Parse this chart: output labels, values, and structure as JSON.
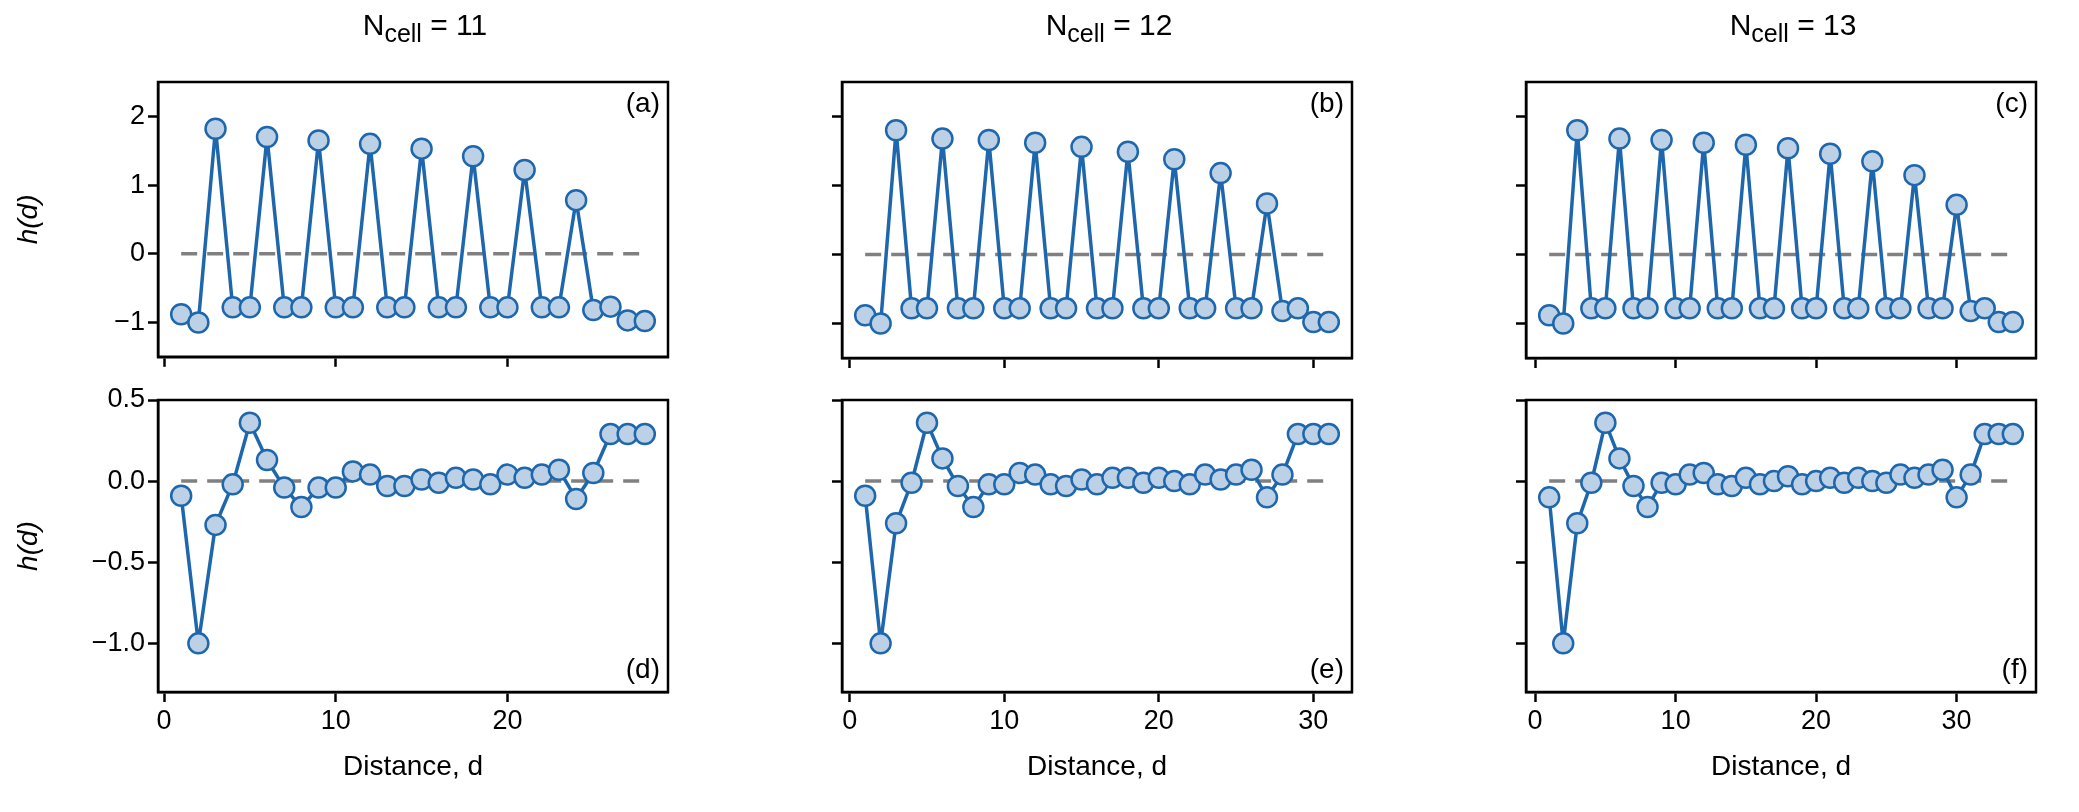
{
  "chart_data": [
    {
      "type": "line",
      "title": "N$_{cell}$ = 11",
      "ylabel": "h(d)",
      "annotations": [
        "(a)"
      ],
      "x": [
        1,
        2,
        3,
        4,
        5,
        6,
        7,
        8,
        9,
        10,
        11,
        12,
        13,
        14,
        15,
        16,
        17,
        18,
        19,
        20,
        21,
        22,
        23,
        24,
        25,
        26,
        27,
        28
      ],
      "xlim": [
        -0.35,
        29.35
      ],
      "xticks": [
        0,
        10,
        20
      ],
      "ylim": [
        -1.5,
        2.5
      ],
      "yticks": [
        -1,
        0,
        1,
        2
      ],
      "tick_labels": "y",
      "marker": "circle",
      "line_style": "solid",
      "series": [
        {
          "color": "#1f67ad",
          "values": [
            -0.88,
            -1.0,
            1.82,
            -0.78,
            -0.78,
            1.7,
            -0.78,
            -0.78,
            1.65,
            -0.78,
            -0.78,
            1.6,
            -0.78,
            -0.78,
            1.53,
            -0.78,
            -0.78,
            1.42,
            -0.78,
            -0.78,
            1.22,
            -0.78,
            -0.78,
            0.78,
            -0.82,
            -0.77,
            -0.97,
            -0.98
          ]
        }
      ],
      "ref_lines": [
        {
          "axis": "y",
          "value": 0,
          "color": "#808080",
          "line_style": "dashed"
        }
      ]
    },
    {
      "type": "line",
      "title": "N$_{cell}$ = 12",
      "annotations": [
        "(b)"
      ],
      "x": [
        1,
        2,
        3,
        4,
        5,
        6,
        7,
        8,
        9,
        10,
        11,
        12,
        13,
        14,
        15,
        16,
        17,
        18,
        19,
        20,
        21,
        22,
        23,
        24,
        25,
        26,
        27,
        28,
        29,
        30,
        31
      ],
      "xlim": [
        -0.5,
        32.5
      ],
      "xticks": [
        0,
        10,
        20,
        30
      ],
      "ylim": [
        -1.5,
        2.5
      ],
      "yticks": [
        -1,
        0,
        1,
        2
      ],
      "tick_labels": false,
      "marker": "circle",
      "line_style": "solid",
      "series": [
        {
          "color": "#1f67ad",
          "values": [
            -0.88,
            -1.0,
            1.8,
            -0.78,
            -0.78,
            1.68,
            -0.78,
            -0.78,
            1.66,
            -0.78,
            -0.78,
            1.62,
            -0.78,
            -0.78,
            1.56,
            -0.78,
            -0.78,
            1.49,
            -0.78,
            -0.78,
            1.38,
            -0.78,
            -0.78,
            1.18,
            -0.78,
            -0.78,
            0.74,
            -0.82,
            -0.78,
            -0.98,
            -0.98
          ]
        }
      ],
      "ref_lines": [
        {
          "axis": "y",
          "value": 0,
          "color": "#808080",
          "line_style": "dashed"
        }
      ]
    },
    {
      "type": "line",
      "title": "N$_{cell}$ = 13",
      "annotations": [
        "(c)"
      ],
      "x": [
        1,
        2,
        3,
        4,
        5,
        6,
        7,
        8,
        9,
        10,
        11,
        12,
        13,
        14,
        15,
        16,
        17,
        18,
        19,
        20,
        21,
        22,
        23,
        24,
        25,
        26,
        27,
        28,
        29,
        30,
        31,
        32,
        33,
        34
      ],
      "xlim": [
        -0.65,
        35.65
      ],
      "xticks": [
        0,
        10,
        20,
        30
      ],
      "ylim": [
        -1.5,
        2.5
      ],
      "yticks": [
        -1,
        0,
        1,
        2
      ],
      "tick_labels": false,
      "marker": "circle",
      "line_style": "solid",
      "series": [
        {
          "color": "#1f67ad",
          "values": [
            -0.88,
            -1.0,
            1.8,
            -0.78,
            -0.78,
            1.68,
            -0.78,
            -0.78,
            1.66,
            -0.78,
            -0.78,
            1.62,
            -0.78,
            -0.78,
            1.59,
            -0.78,
            -0.78,
            1.54,
            -0.78,
            -0.78,
            1.46,
            -0.78,
            -0.78,
            1.35,
            -0.78,
            -0.78,
            1.15,
            -0.78,
            -0.78,
            0.72,
            -0.82,
            -0.78,
            -0.98,
            -0.98
          ]
        }
      ],
      "ref_lines": [
        {
          "axis": "y",
          "value": 0,
          "color": "#808080",
          "line_style": "dashed"
        }
      ]
    },
    {
      "type": "line",
      "xlabel": "Distance, d",
      "ylabel": "h(d)",
      "annotations": [
        "(d)"
      ],
      "x": [
        1,
        2,
        3,
        4,
        5,
        6,
        7,
        8,
        9,
        10,
        11,
        12,
        13,
        14,
        15,
        16,
        17,
        18,
        19,
        20,
        21,
        22,
        23,
        24,
        25,
        26,
        27,
        28
      ],
      "xlim": [
        -0.35,
        29.35
      ],
      "xticks": [
        0,
        10,
        20
      ],
      "ylim": [
        -1.3,
        0.5
      ],
      "yticks": [
        0.5,
        {
          "value": 0,
          "label": "0.0"
        },
        -0.5,
        {
          "value": -1,
          "label": "−1.0"
        }
      ],
      "marker": "circle",
      "line_style": "solid",
      "series": [
        {
          "color": "#1f67ad",
          "values": [
            -0.09,
            -1.0,
            -0.27,
            -0.02,
            0.36,
            0.13,
            -0.04,
            -0.16,
            -0.04,
            -0.04,
            0.06,
            0.04,
            -0.03,
            -0.03,
            0.01,
            -0.01,
            0.02,
            0.01,
            -0.02,
            0.04,
            0.02,
            0.04,
            0.07,
            -0.11,
            0.05,
            0.29,
            0.29,
            0.29
          ]
        }
      ],
      "ref_lines": [
        {
          "axis": "y",
          "value": 0,
          "color": "#808080",
          "line_style": "dashed"
        }
      ]
    },
    {
      "type": "line",
      "xlabel": "Distance, d",
      "annotations": [
        "(e)"
      ],
      "x": [
        1,
        2,
        3,
        4,
        5,
        6,
        7,
        8,
        9,
        10,
        11,
        12,
        13,
        14,
        15,
        16,
        17,
        18,
        19,
        20,
        21,
        22,
        23,
        24,
        25,
        26,
        27,
        28,
        29,
        30,
        31
      ],
      "xlim": [
        -0.5,
        32.5
      ],
      "xticks": [
        0,
        10,
        20,
        30
      ],
      "ylim": [
        -1.3,
        0.5
      ],
      "yticks": [
        0.5,
        0,
        -0.5,
        -1
      ],
      "tick_labels": "x",
      "marker": "circle",
      "line_style": "solid",
      "series": [
        {
          "color": "#1f67ad",
          "values": [
            -0.09,
            -1.0,
            -0.26,
            -0.01,
            0.36,
            0.14,
            -0.03,
            -0.16,
            -0.02,
            -0.02,
            0.05,
            0.04,
            -0.02,
            -0.03,
            0.01,
            -0.02,
            0.02,
            0.02,
            -0.01,
            0.02,
            0.0,
            -0.02,
            0.04,
            0.01,
            0.04,
            0.07,
            -0.1,
            0.04,
            0.29,
            0.29,
            0.29
          ]
        }
      ],
      "ref_lines": [
        {
          "axis": "y",
          "value": 0,
          "color": "#808080",
          "line_style": "dashed"
        }
      ]
    },
    {
      "type": "line",
      "xlabel": "Distance, d",
      "annotations": [
        "(f)"
      ],
      "x": [
        1,
        2,
        3,
        4,
        5,
        6,
        7,
        8,
        9,
        10,
        11,
        12,
        13,
        14,
        15,
        16,
        17,
        18,
        19,
        20,
        21,
        22,
        23,
        24,
        25,
        26,
        27,
        28,
        29,
        30,
        31,
        32,
        33,
        34
      ],
      "xlim": [
        -0.65,
        35.65
      ],
      "xticks": [
        0,
        10,
        20,
        30
      ],
      "ylim": [
        -1.3,
        0.5
      ],
      "yticks": [
        0.5,
        0,
        -0.5,
        -1
      ],
      "tick_labels": "x",
      "marker": "circle",
      "line_style": "solid",
      "series": [
        {
          "color": "#1f67ad",
          "values": [
            -0.1,
            -1.0,
            -0.26,
            -0.01,
            0.36,
            0.14,
            -0.03,
            -0.16,
            -0.01,
            -0.02,
            0.04,
            0.05,
            -0.02,
            -0.03,
            0.02,
            -0.02,
            0.0,
            0.03,
            -0.02,
            0.0,
            0.02,
            -0.01,
            0.02,
            0.0,
            -0.01,
            0.04,
            0.02,
            0.04,
            0.07,
            -0.1,
            0.04,
            0.29,
            0.29,
            0.29
          ]
        }
      ],
      "ref_lines": [
        {
          "axis": "y",
          "value": 0,
          "color": "#808080",
          "line_style": "dashed"
        }
      ]
    }
  ]
}
